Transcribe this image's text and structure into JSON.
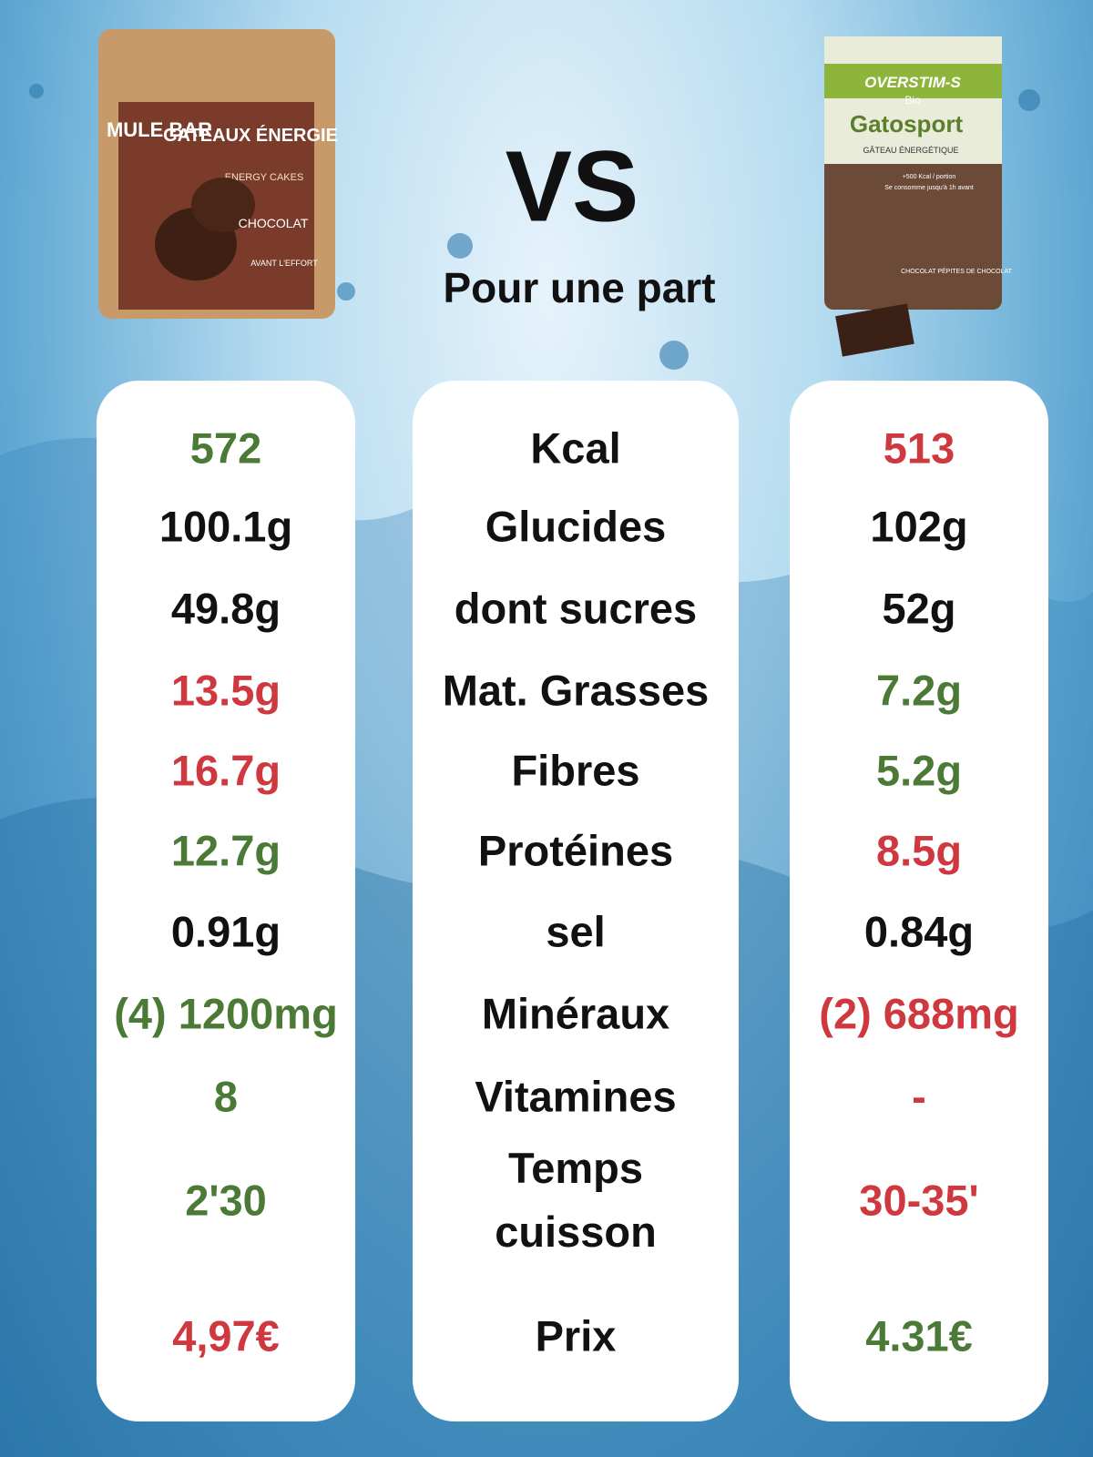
{
  "header": {
    "vs": "VS",
    "subtitle": "Pour une part"
  },
  "left_product": {
    "brand": "MULE BAR",
    "name": "GATEAUX ÉNERGIE",
    "sub": "ENERGY CAKES",
    "flavor": "CHOCOLAT",
    "tag": "AVANT L'EFFORT"
  },
  "right_product": {
    "brand": "OVERSTIM-S",
    "bio": "Bio",
    "name": "Gatosport",
    "sub": "GÂTEAU ÉNERGÉTIQUE",
    "claim1": "+500 Kcal / portion",
    "claim2": "Se consomme jusqu'à 1h avant",
    "flavor": "CHOCOLAT PÉPITES DE CHOCOLAT"
  },
  "colors": {
    "good": "#4a7a35",
    "bad": "#d0383f",
    "neutral": "#111111"
  },
  "table": {
    "rows": [
      {
        "label": "Kcal",
        "left": "572",
        "right": "513",
        "left_color": "good",
        "right_color": "bad"
      },
      {
        "label": "Glucides",
        "left": "100.1g",
        "right": "102g",
        "left_color": "neutral",
        "right_color": "neutral"
      },
      {
        "label": "dont sucres",
        "left": "49.8g",
        "right": "52g",
        "left_color": "neutral",
        "right_color": "neutral"
      },
      {
        "label": "Mat. Grasses",
        "left": "13.5g",
        "right": "7.2g",
        "left_color": "bad",
        "right_color": "good"
      },
      {
        "label": "Fibres",
        "left": "16.7g",
        "right": "5.2g",
        "left_color": "bad",
        "right_color": "good"
      },
      {
        "label": "Protéines",
        "left": "12.7g",
        "right": "8.5g",
        "left_color": "good",
        "right_color": "bad"
      },
      {
        "label": "sel",
        "left": "0.91g",
        "right": "0.84g",
        "left_color": "neutral",
        "right_color": "neutral"
      },
      {
        "label": "Minéraux",
        "left": "(4) 1200mg",
        "right": "(2) 688mg",
        "left_color": "good",
        "right_color": "bad"
      },
      {
        "label": "Vitamines",
        "left": "8",
        "right": "-",
        "left_color": "good",
        "right_color": "bad"
      },
      {
        "label": "Temps cuisson",
        "left": "2'30",
        "right": "30-35'",
        "left_color": "good",
        "right_color": "bad"
      },
      {
        "label": "Prix",
        "left": "4,97€",
        "right": "4.31€",
        "left_color": "bad",
        "right_color": "good"
      }
    ]
  }
}
